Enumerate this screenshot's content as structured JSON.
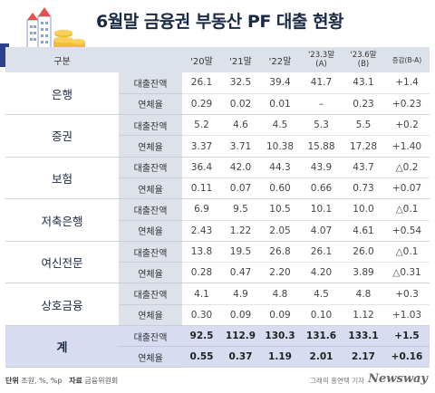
{
  "title": "6월말 금융권 부동산 PF 대출 현황",
  "header": [
    "구분",
    "'20말",
    "'21말",
    "'22말",
    "'23.3말\n(A)",
    "'23.6말\n(B)",
    "증감(B-A)"
  ],
  "rows": [
    {
      "category": "은행",
      "loan": [
        "26.1",
        "32.5",
        "39.4",
        "41.7",
        "43.1",
        "+1.4"
      ],
      "delinquency": [
        "0.29",
        "0.02",
        "0.01",
        "–",
        "0.23",
        "+0.23"
      ]
    },
    {
      "category": "증권",
      "loan": [
        "5.2",
        "4.6",
        "4.5",
        "5.3",
        "5.5",
        "+0.2"
      ],
      "delinquency": [
        "3.37",
        "3.71",
        "10.38",
        "15.88",
        "17.28",
        "+1.40"
      ]
    },
    {
      "category": "보험",
      "loan": [
        "36.4",
        "42.0",
        "44.3",
        "43.9",
        "43.7",
        "△0.2"
      ],
      "delinquency": [
        "0.11",
        "0.07",
        "0.60",
        "0.66",
        "0.73",
        "+0.07"
      ]
    },
    {
      "category": "저축은행",
      "loan": [
        "6.9",
        "9.5",
        "10.5",
        "10.1",
        "10.0",
        "△0.1"
      ],
      "delinquency": [
        "2.43",
        "1.22",
        "2.05",
        "4.07",
        "4.61",
        "+0.54"
      ]
    },
    {
      "category": "여신전문",
      "loan": [
        "13.8",
        "19.5",
        "26.8",
        "26.1",
        "26.0",
        "△0.1"
      ],
      "delinquency": [
        "0.28",
        "0.47",
        "2.20",
        "4.20",
        "3.89",
        "△0.31"
      ]
    },
    {
      "category": "상호금융",
      "loan": [
        "4.1",
        "4.9",
        "4.8",
        "4.5",
        "4.8",
        "+0.3"
      ],
      "delinquency": [
        "0.30",
        "0.09",
        "0.09",
        "0.10",
        "1.12",
        "+1.03"
      ]
    }
  ],
  "total": {
    "category": "계",
    "loan": [
      "92.5",
      "112.9",
      "130.3",
      "131.6",
      "133.1",
      "+1.5"
    ],
    "delinquency": [
      "0.55",
      "0.37",
      "1.19",
      "2.01",
      "2.17",
      "+0.16"
    ]
  },
  "metric_labels": {
    "loan": "대출잔액",
    "delinquency": "연체율"
  },
  "footer": {
    "unit_label": "단위",
    "unit_value": "조원, %, %p",
    "source_label": "자료",
    "source_value": "금융위원회",
    "credit": "그래픽 홍연택 기자",
    "logo": "Newsway"
  }
}
